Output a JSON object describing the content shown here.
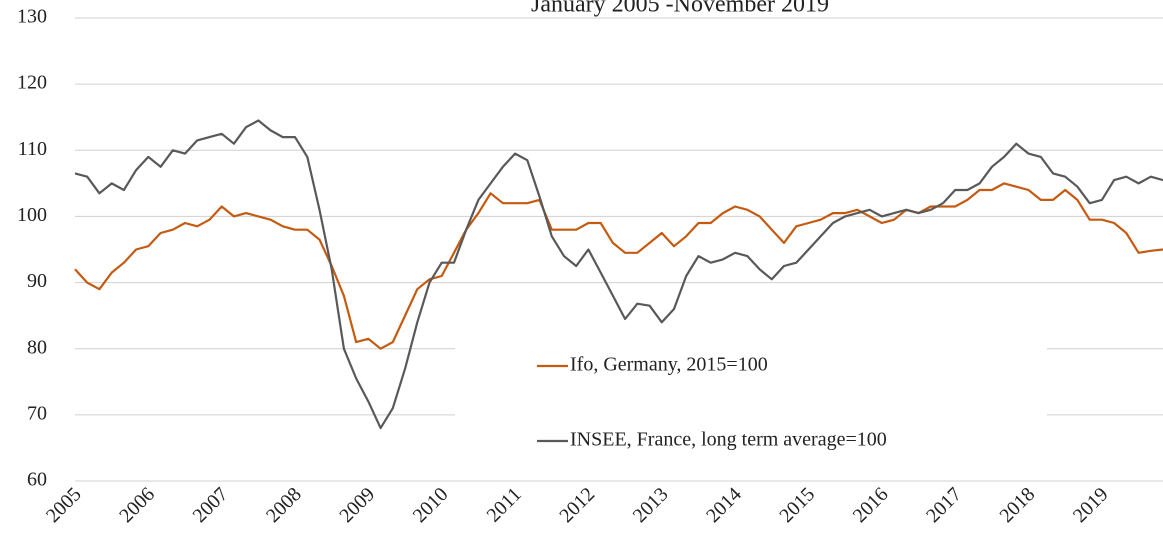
{
  "chart_data": {
    "type": "line",
    "title": "January 2005 -November 2019",
    "categories": [
      "2005",
      null,
      null,
      null,
      null,
      null,
      "2006",
      null,
      null,
      null,
      null,
      null,
      "2007",
      null,
      null,
      null,
      null,
      null,
      "2008",
      null,
      null,
      null,
      null,
      null,
      "2009",
      null,
      null,
      null,
      null,
      null,
      "2010",
      null,
      null,
      null,
      null,
      null,
      "2011",
      null,
      null,
      null,
      null,
      null,
      "2012",
      null,
      null,
      null,
      null,
      null,
      "2013",
      null,
      null,
      null,
      null,
      null,
      "2014",
      null,
      null,
      null,
      null,
      null,
      "2015",
      null,
      null,
      null,
      null,
      null,
      "2016",
      null,
      null,
      null,
      null,
      null,
      "2017",
      null,
      null,
      null,
      null,
      null,
      "2018",
      null,
      null,
      null,
      null,
      null,
      "2019",
      null,
      null,
      null,
      null,
      null
    ],
    "series": [
      {
        "name": "Ifo, Germany, 2015=100",
        "color": "#c55a11",
        "values": [
          92,
          90,
          89,
          91.5,
          93,
          95,
          95.5,
          97.5,
          98,
          99,
          98.5,
          99.5,
          101.5,
          100,
          100.5,
          100,
          99.5,
          98.5,
          98,
          98,
          96.5,
          92.5,
          88,
          81,
          81.5,
          80,
          81,
          85,
          89,
          90.5,
          91,
          94.5,
          98,
          100.5,
          103.5,
          102,
          102,
          102,
          102.5,
          98,
          98,
          98,
          99,
          99,
          96,
          94.5,
          94.5,
          96,
          97.5,
          95.5,
          97,
          99,
          99,
          100.5,
          101.5,
          101,
          100,
          98,
          96,
          98.5,
          99,
          99.5,
          100.5,
          100.5,
          101,
          100,
          99,
          99.5,
          101,
          100.5,
          101.5,
          101.5,
          101.5,
          102.5,
          104,
          104,
          105,
          104.5,
          104,
          102.5,
          102.5,
          104,
          102.5,
          99.5,
          99.5,
          99,
          97.5,
          94.5,
          94.8,
          95
        ]
      },
      {
        "name": "INSEE, France, long term average=100",
        "color": "#595959",
        "values": [
          106.5,
          106,
          103.5,
          105,
          104,
          107,
          109,
          107.5,
          110,
          109.5,
          111.5,
          112,
          112.5,
          111,
          113.5,
          114.5,
          113,
          112,
          112,
          109,
          101,
          92,
          80,
          75.5,
          72,
          68,
          71,
          77,
          84,
          90,
          93,
          93,
          98,
          102.5,
          105,
          107.5,
          109.5,
          108.5,
          103,
          97,
          94,
          92.5,
          95,
          91.5,
          88,
          84.5,
          86.8,
          86.5,
          84,
          86,
          91,
          94,
          93,
          93.5,
          94.5,
          94,
          92,
          90.5,
          92.5,
          93,
          95,
          97,
          99,
          100,
          100.5,
          101,
          100,
          100.5,
          101,
          100.5,
          101,
          102,
          104,
          104,
          105,
          107.5,
          109,
          111,
          109.5,
          109,
          106.5,
          106,
          104.5,
          102,
          102.5,
          105.5,
          106,
          105,
          106,
          105.5
        ]
      }
    ],
    "ylim": [
      60,
      130
    ],
    "yticks": [
      60,
      70,
      80,
      90,
      100,
      110,
      120,
      130
    ],
    "grid": true
  }
}
